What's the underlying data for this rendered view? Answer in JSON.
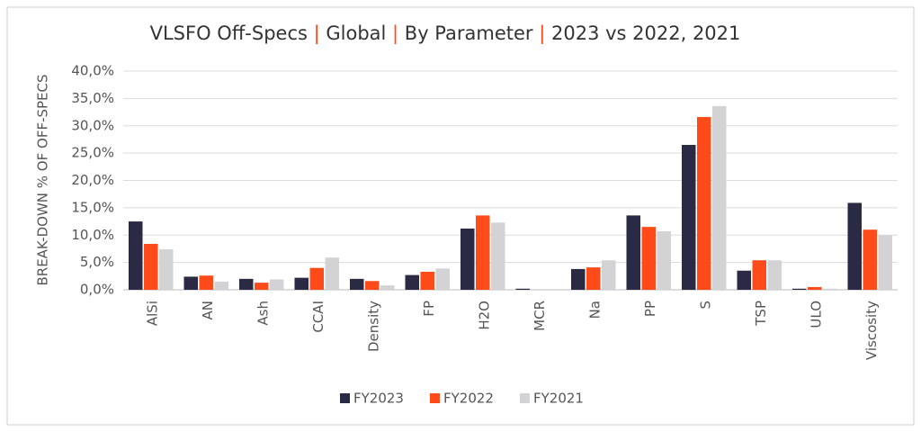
{
  "chart_data": {
    "type": "bar",
    "title": [
      "VLSFO Off-Specs ",
      "|",
      " Global ",
      "|",
      " By Parameter ",
      "|",
      " 2023 vs 2022, 2021"
    ],
    "ylabel": "BREAK-DOWN % OF OFF-SPECS",
    "categories": [
      "AlSi",
      "AN",
      "Ash",
      "CCAI",
      "Density",
      "FP",
      "H2O",
      "MCR",
      "Na",
      "PP",
      "S",
      "TSP",
      "ULO",
      "Viscosity"
    ],
    "series": [
      {
        "name": "FY2023",
        "color": "#2b2a45",
        "values": [
          12.5,
          2.4,
          2.0,
          2.2,
          2.0,
          2.7,
          11.2,
          0.2,
          3.8,
          13.6,
          26.5,
          3.5,
          0.2,
          15.9
        ]
      },
      {
        "name": "FY2022",
        "color": "#ff4b1a",
        "values": [
          8.4,
          2.6,
          1.3,
          4.0,
          1.6,
          3.3,
          13.6,
          0,
          4.1,
          11.5,
          31.6,
          5.4,
          0.5,
          11.0
        ]
      },
      {
        "name": "FY2021",
        "color": "#d3d3d6",
        "values": [
          7.4,
          1.5,
          1.9,
          5.9,
          0.8,
          3.9,
          12.3,
          0,
          5.4,
          10.7,
          33.6,
          5.4,
          0.2,
          10.0
        ]
      }
    ],
    "ylim": [
      0,
      40
    ],
    "yticks": [
      {
        "value": 0,
        "label": "0,0%"
      },
      {
        "value": 5,
        "label": "5,0%"
      },
      {
        "value": 10,
        "label": "10,0%"
      },
      {
        "value": 15,
        "label": "15,0%"
      },
      {
        "value": 20,
        "label": "20,0%"
      },
      {
        "value": 25,
        "label": "25,0%"
      },
      {
        "value": 30,
        "label": "30,0%"
      },
      {
        "value": 35,
        "label": "35,0%"
      },
      {
        "value": 40,
        "label": "40,0%"
      }
    ],
    "grid": true,
    "legend": "bottom"
  }
}
